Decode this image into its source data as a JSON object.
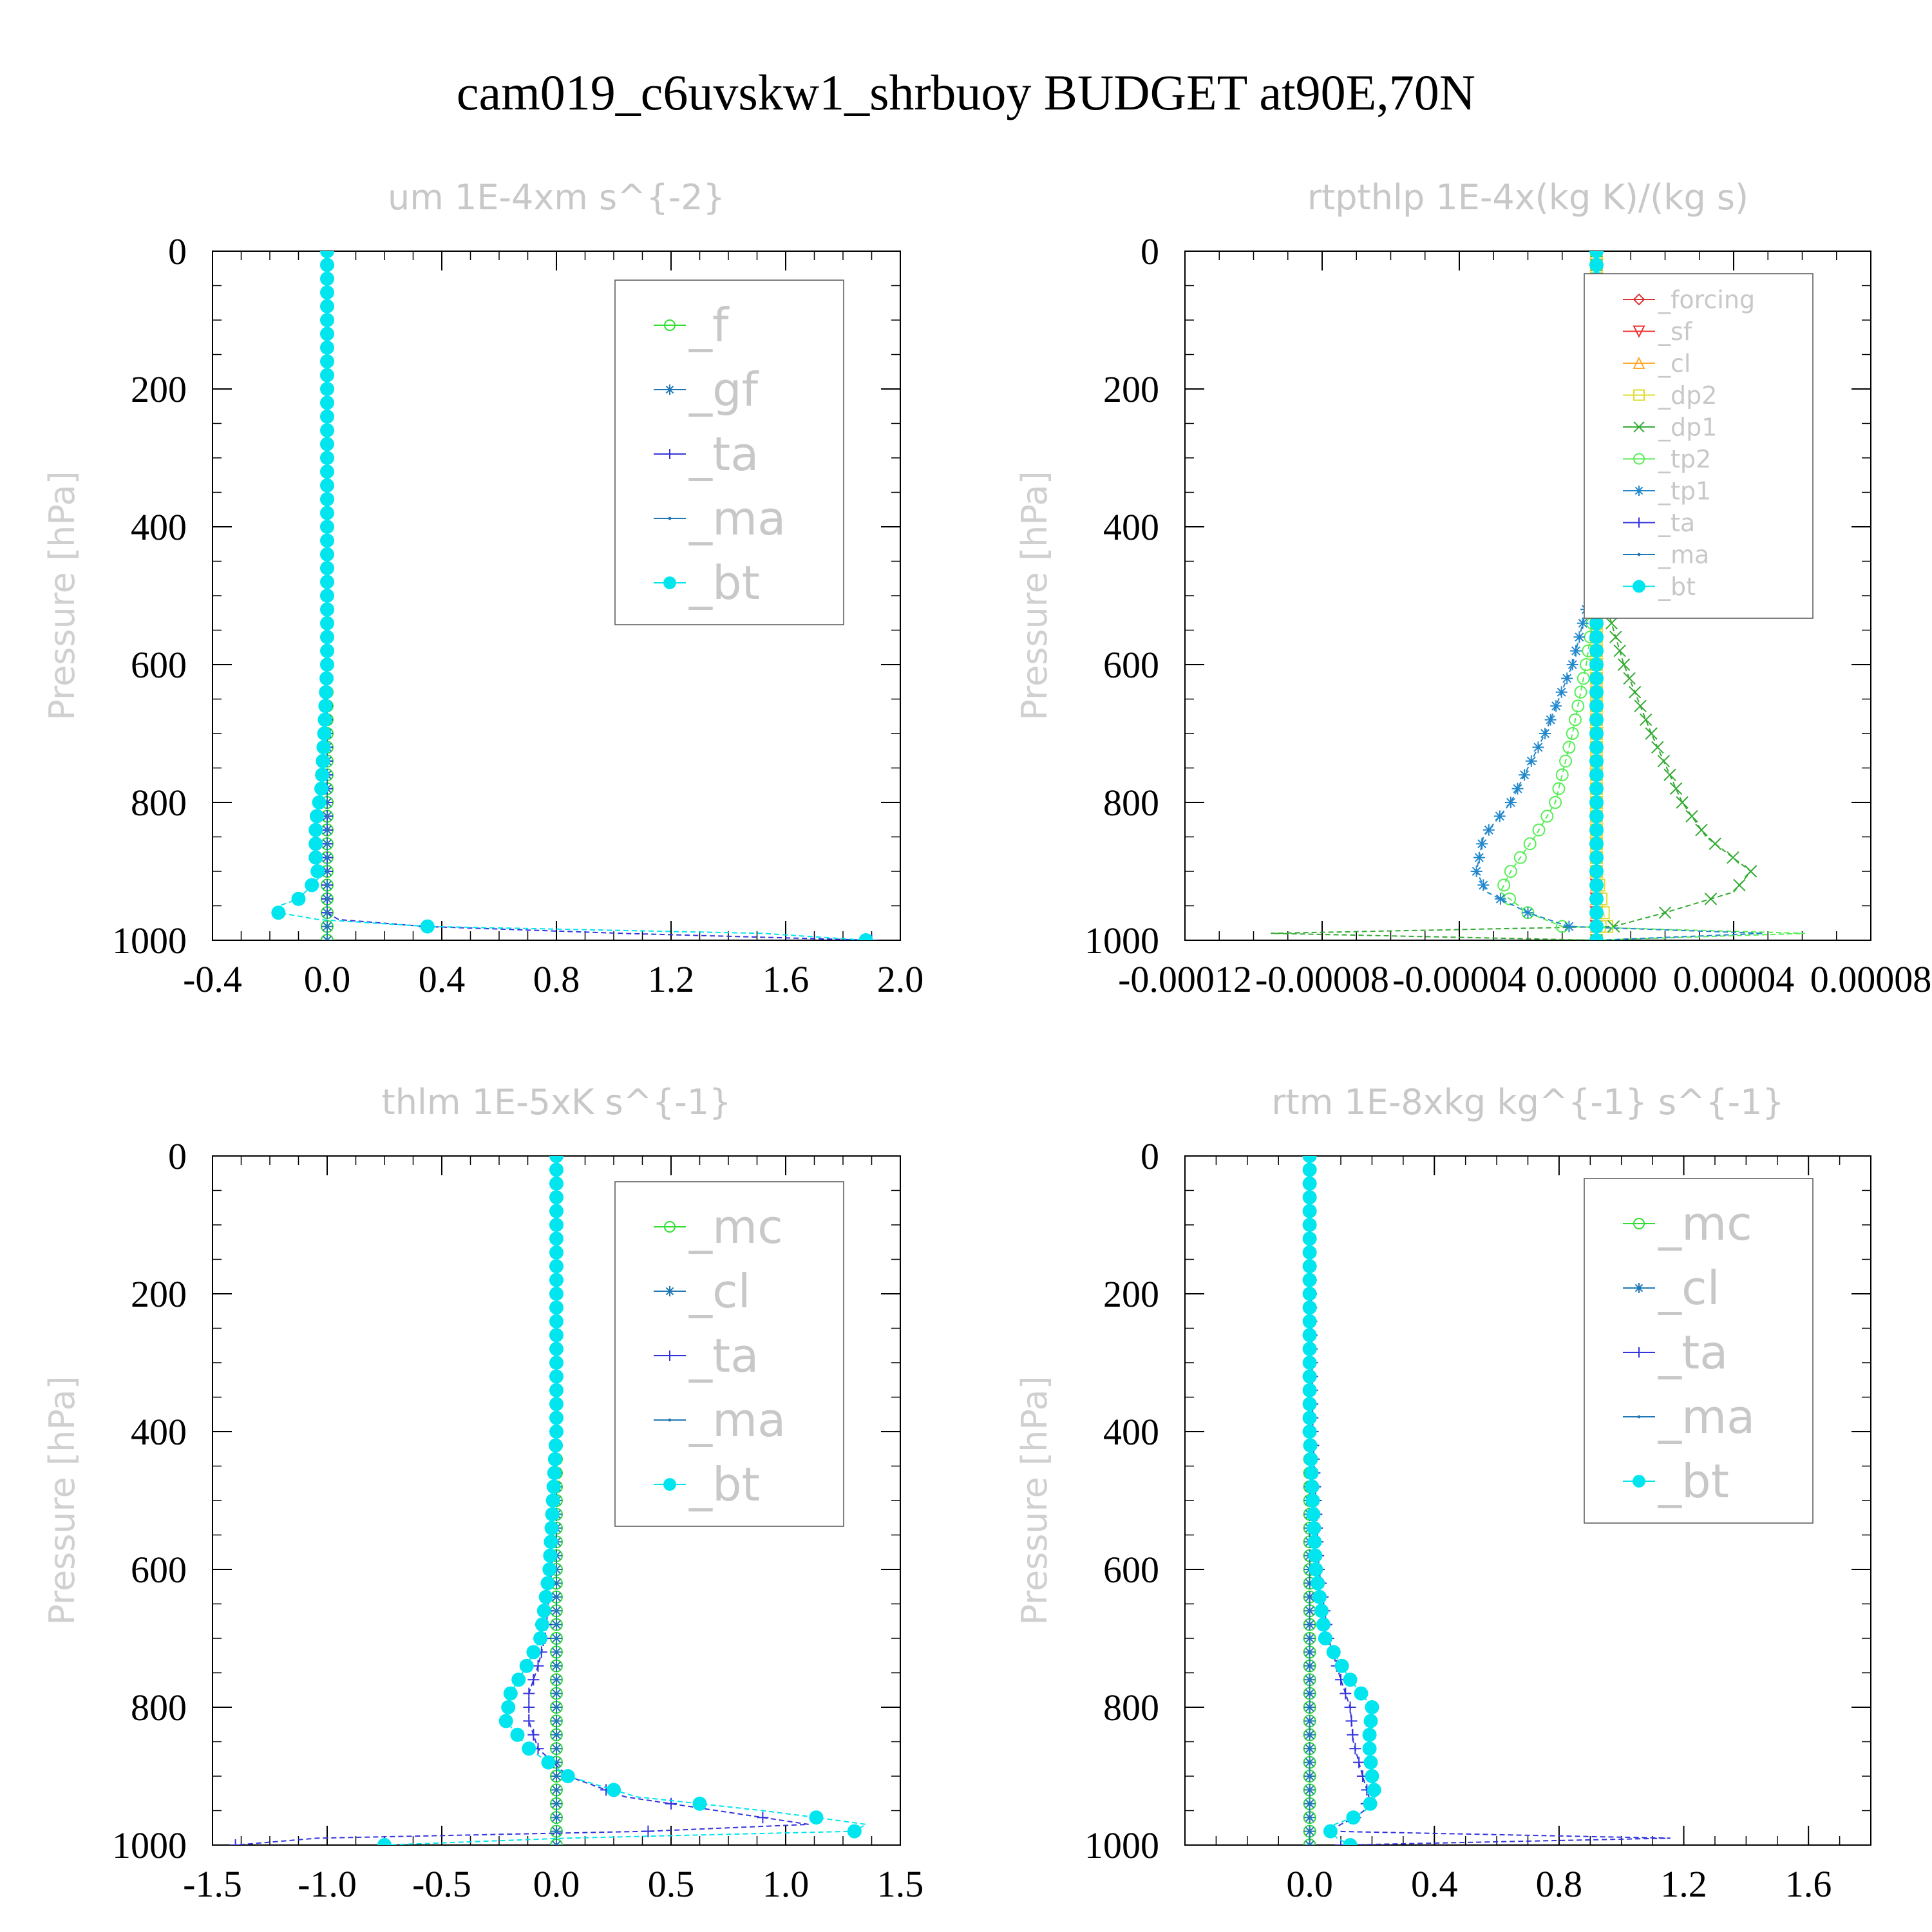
{
  "suptitle": "cam019_c6uvskw1_shrbuoy  BUDGET at90E,70N",
  "chart_data": [
    {
      "type": "line",
      "title": "um  1E-4xm s^{-2}",
      "ylabel": "Pressure [hPa]",
      "xlabel": "",
      "xlim": [
        -0.4,
        2.0
      ],
      "ylim": [
        1000,
        0
      ],
      "xticks": [
        "-0.4",
        "0.0",
        "0.4",
        "0.8",
        "1.2",
        "1.6",
        "2.0"
      ],
      "yticks": [
        "0",
        "200",
        "400",
        "600",
        "800",
        "1000"
      ],
      "legend_position": "top-right",
      "y": [
        0,
        200,
        400,
        600,
        700,
        780,
        830,
        880,
        910,
        940,
        955,
        965,
        975,
        985,
        992,
        1000
      ],
      "series": [
        {
          "name": "_f",
          "color": "#33dd33",
          "values": [
            0,
            0,
            0,
            0,
            0,
            0,
            0,
            0,
            0,
            0,
            0,
            0,
            0,
            0,
            0,
            0
          ]
        },
        {
          "name": "_gf",
          "color": "#1f77b4",
          "values": [
            0,
            0,
            0,
            0,
            0,
            0,
            0,
            0,
            0,
            0,
            0,
            0,
            0,
            0,
            0,
            0
          ]
        },
        {
          "name": "_ta",
          "color": "#3333dd",
          "values": [
            0,
            0,
            0,
            0,
            0,
            0,
            0,
            0,
            0,
            0,
            0,
            0,
            0.08,
            0.6,
            1.2,
            1.9
          ]
        },
        {
          "name": "_ma",
          "color": "#1f77b4",
          "values": [
            0,
            0,
            0,
            0,
            0,
            0,
            0,
            0,
            0,
            0,
            0,
            0,
            0,
            0,
            0,
            0
          ]
        },
        {
          "name": "_bt",
          "color": "#00e5ee",
          "values": [
            0,
            0,
            0,
            0,
            -0.01,
            -0.02,
            -0.04,
            -0.04,
            -0.03,
            -0.1,
            -0.2,
            -0.14,
            0.08,
            0.62,
            1.88,
            1.88
          ]
        }
      ]
    },
    {
      "type": "line",
      "title": "rtpthlp  1E-4x(kg K)/(kg s)",
      "ylabel": "Pressure [hPa]",
      "xlabel": "",
      "xlim": [
        -0.00012,
        8e-05
      ],
      "ylim": [
        1000,
        0
      ],
      "xticks": [
        "-0.00012",
        "-0.00008",
        "-0.00004",
        "0.00000",
        "0.00004",
        "0.00008"
      ],
      "yticks": [
        "0",
        "200",
        "400",
        "600",
        "800",
        "1000"
      ],
      "legend_position": "top-right",
      "y": [
        0,
        400,
        500,
        600,
        700,
        800,
        850,
        900,
        930,
        960,
        980,
        992,
        1000
      ],
      "series": [
        {
          "name": "_forcing",
          "color": "#dd3333",
          "values": [
            0,
            0,
            0,
            0,
            0,
            0,
            0,
            0,
            0,
            0,
            0,
            0,
            0
          ]
        },
        {
          "name": "_sf",
          "color": "#ee3333",
          "values": [
            0,
            0,
            0,
            0,
            0,
            0,
            0,
            0,
            0,
            0,
            0,
            0,
            0
          ]
        },
        {
          "name": "_cl",
          "color": "#ffaa33",
          "values": [
            0,
            0,
            0,
            0,
            0,
            0,
            0,
            0,
            0,
            0,
            0,
            0,
            0
          ]
        },
        {
          "name": "_dp2",
          "color": "#dddd33",
          "values": [
            0,
            0,
            0,
            0,
            0,
            0,
            0,
            0,
            1e-06,
            2e-06,
            3e-06,
            2e-06,
            0
          ]
        },
        {
          "name": "_dp1",
          "color": "#33aa33",
          "values": [
            0,
            0,
            2e-06,
            8e-06,
            1.6e-05,
            2.5e-05,
            3.2e-05,
            4.5e-05,
            4e-05,
            2e-05,
            5e-06,
            -0.000115,
            0
          ]
        },
        {
          "name": "_tp2",
          "color": "#55ee55",
          "values": [
            0,
            0,
            0,
            -3e-06,
            -7e-06,
            -1.2e-05,
            -1.8e-05,
            -2.5e-05,
            -2.8e-05,
            -2e-05,
            -1e-05,
            7.5e-05,
            0
          ]
        },
        {
          "name": "_tp1",
          "color": "#2288cc",
          "values": [
            0,
            0,
            -2e-06,
            -7e-06,
            -1.5e-05,
            -2.5e-05,
            -3.3e-05,
            -3.5e-05,
            -3.2e-05,
            -2e-05,
            -8e-06,
            6e-05,
            0
          ]
        },
        {
          "name": "_ta",
          "color": "#3333dd",
          "values": [
            0,
            0,
            0,
            0,
            0,
            0,
            0,
            0,
            0,
            0,
            0,
            0,
            0
          ]
        },
        {
          "name": "_ma",
          "color": "#1f77b4",
          "values": [
            0,
            0,
            0,
            0,
            0,
            0,
            0,
            0,
            0,
            0,
            0,
            0,
            0
          ]
        },
        {
          "name": "_bt",
          "color": "#00e5ee",
          "values": [
            0,
            0,
            0,
            0,
            0,
            0,
            0,
            0,
            0,
            0,
            0,
            0,
            0
          ]
        }
      ]
    },
    {
      "type": "line",
      "title": "thlm  1E-5xK s^{-1}",
      "ylabel": "Pressure [hPa]",
      "xlabel": "",
      "xlim": [
        -1.5,
        1.5
      ],
      "ylim": [
        1000,
        0
      ],
      "xticks": [
        "-1.5",
        "-1.0",
        "-0.5",
        "0.0",
        "0.5",
        "1.0",
        "1.5"
      ],
      "yticks": [
        "0",
        "200",
        "400",
        "600",
        "800",
        "1000"
      ],
      "legend_position": "top-right",
      "y": [
        0,
        400,
        600,
        700,
        740,
        780,
        820,
        860,
        900,
        930,
        950,
        965,
        975,
        985,
        992,
        1000
      ],
      "series": [
        {
          "name": "_mc",
          "color": "#33dd33",
          "values": [
            0,
            0,
            0,
            0,
            0,
            0,
            0,
            0,
            0,
            0,
            0,
            0,
            0,
            0,
            0,
            0
          ]
        },
        {
          "name": "_cl",
          "color": "#1f77b4",
          "values": [
            0,
            0,
            0,
            0,
            0,
            0,
            0,
            0,
            0,
            0,
            0,
            0,
            0,
            0,
            0,
            0
          ]
        },
        {
          "name": "_ta",
          "color": "#3333dd",
          "values": [
            0,
            0,
            -0.02,
            -0.05,
            -0.08,
            -0.12,
            -0.12,
            -0.08,
            0.05,
            0.3,
            0.7,
            1.0,
            1.2,
            -0.4,
            -1.3,
            -1.4
          ]
        },
        {
          "name": "_ma",
          "color": "#1f77b4",
          "values": [
            0,
            0,
            0,
            0,
            0,
            0,
            0,
            0,
            0,
            0,
            0,
            0,
            0,
            0,
            0,
            0
          ]
        },
        {
          "name": "_bt",
          "color": "#00e5ee",
          "values": [
            0,
            0,
            -0.03,
            -0.07,
            -0.13,
            -0.2,
            -0.22,
            -0.12,
            0.05,
            0.35,
            0.9,
            1.25,
            1.45,
            1.15,
            -0.4,
            -0.75
          ]
        }
      ]
    },
    {
      "type": "line",
      "title": "rtm  1E-8xkg kg^{-1} s^{-1}",
      "ylabel": "Pressure [hPa]",
      "xlabel": "",
      "xlim": [
        -0.4,
        1.8
      ],
      "ylim": [
        1000,
        0
      ],
      "xticks": [
        "0.0",
        "0.4",
        "0.8",
        "1.2",
        "1.6"
      ],
      "yticks": [
        "0",
        "200",
        "400",
        "600",
        "800",
        "1000"
      ],
      "legend_position": "top-right",
      "y": [
        0,
        400,
        600,
        700,
        760,
        800,
        850,
        900,
        930,
        955,
        970,
        985,
        992,
        1000
      ],
      "series": [
        {
          "name": "_mc",
          "color": "#33dd33",
          "values": [
            0,
            0,
            0,
            0,
            0,
            0,
            0,
            0,
            0,
            0,
            0,
            0,
            0,
            0
          ]
        },
        {
          "name": "_cl",
          "color": "#1f77b4",
          "values": [
            0,
            0,
            0,
            0,
            0,
            0,
            0,
            0,
            0,
            0,
            0,
            0,
            0,
            0
          ]
        },
        {
          "name": "_ta",
          "color": "#3333dd",
          "values": [
            0,
            0.01,
            0.03,
            0.06,
            0.1,
            0.13,
            0.14,
            0.17,
            0.19,
            0.17,
            0.1,
            0.05,
            1.6,
            0.1
          ]
        },
        {
          "name": "_ma",
          "color": "#1f77b4",
          "values": [
            0,
            0,
            0,
            0,
            0,
            0,
            0,
            0,
            0,
            0,
            0,
            0,
            0,
            0
          ]
        },
        {
          "name": "_bt",
          "color": "#00e5ee",
          "values": [
            0,
            0,
            0.02,
            0.05,
            0.13,
            0.2,
            0.19,
            0.2,
            0.21,
            0.17,
            0.08,
            0.06,
            0.1,
            0.13
          ]
        }
      ]
    }
  ]
}
